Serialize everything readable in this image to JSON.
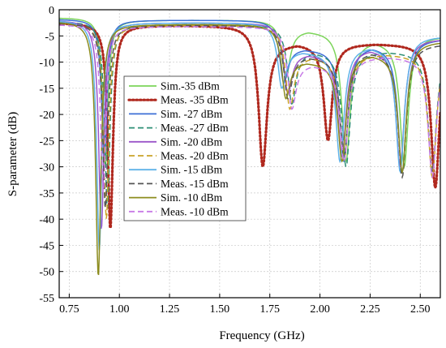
{
  "chart_data": {
    "type": "line",
    "title": "",
    "xlabel": "Frequency (GHz)",
    "ylabel": "S-parameter (dB)",
    "xlim": [
      0.7,
      2.6
    ],
    "ylim": [
      -55,
      0
    ],
    "xticks": [
      "0.75",
      "1.00",
      "1.25",
      "1.50",
      "1.75",
      "2.00",
      "2.25",
      "2.50"
    ],
    "yticks": [
      "0",
      "-5",
      "-10",
      "-15",
      "-20",
      "-25",
      "-30",
      "-35",
      "-40",
      "-45",
      "-50",
      "-55"
    ],
    "legend_position": "center-left",
    "series": [
      {
        "name": "Sim.-35 dBm",
        "color": "#7cd45a",
        "dash": "solid",
        "notches": [
          [
            0.93,
            -30
          ],
          [
            1.83,
            -13
          ],
          [
            2.13,
            -29
          ],
          [
            2.42,
            -30
          ]
        ],
        "peaks": [
          -1.5,
          -2.0,
          -4.0,
          -6.0,
          -5.0
        ]
      },
      {
        "name": "Meas. -35 dBm",
        "color": "#b0281e",
        "dash": "dotted",
        "notches": [
          [
            0.955,
            -42
          ],
          [
            1.715,
            -30
          ],
          [
            2.04,
            -25
          ],
          [
            2.575,
            -34
          ]
        ],
        "peaks": [
          -2.5,
          -3.0,
          -6.5,
          -6.5,
          -5.0
        ]
      },
      {
        "name": "Sim. -27 dBm",
        "color": "#3d6fd6",
        "dash": "solid",
        "notches": [
          [
            0.925,
            -29
          ],
          [
            1.82,
            -14
          ],
          [
            2.12,
            -29
          ],
          [
            2.41,
            -31
          ]
        ],
        "peaks": [
          -1.8,
          -2.0,
          -7.5,
          -7.0,
          -5.5
        ]
      },
      {
        "name": "Meas. -27 dBm",
        "color": "#2e8f76",
        "dash": "dashed",
        "notches": [
          [
            0.94,
            -38
          ],
          [
            1.86,
            -18
          ],
          [
            2.13,
            -30
          ],
          [
            2.56,
            -31
          ]
        ],
        "peaks": [
          -2.2,
          -2.8,
          -8.0,
          -8.0,
          -6.5
        ]
      },
      {
        "name": "Sim. -20 dBm",
        "color": "#9b55c9",
        "dash": "solid",
        "notches": [
          [
            0.91,
            -42
          ],
          [
            1.84,
            -16
          ],
          [
            2.11,
            -28
          ],
          [
            2.4,
            -30
          ]
        ],
        "peaks": [
          -2.0,
          -2.5,
          -8.5,
          -7.5,
          -5.5
        ]
      },
      {
        "name": "Meas. -20 dBm",
        "color": "#c9a227",
        "dash": "dashed",
        "notches": [
          [
            0.935,
            -40
          ],
          [
            1.85,
            -19
          ],
          [
            2.12,
            -29
          ],
          [
            2.56,
            -32
          ]
        ],
        "peaks": [
          -2.5,
          -3.0,
          -9.0,
          -8.5,
          -7.0
        ]
      },
      {
        "name": "Sim. -15 dBm",
        "color": "#5fb2e8",
        "dash": "solid",
        "notches": [
          [
            0.9,
            -46
          ],
          [
            1.81,
            -15
          ],
          [
            2.1,
            -29
          ],
          [
            2.4,
            -31
          ]
        ],
        "peaks": [
          -2.0,
          -2.5,
          -8.0,
          -7.0,
          -5.0
        ]
      },
      {
        "name": "Meas. -15 dBm",
        "color": "#555555",
        "dash": "dashed",
        "notches": [
          [
            0.93,
            -38
          ],
          [
            1.84,
            -17
          ],
          [
            2.12,
            -28
          ],
          [
            2.41,
            -32
          ]
        ],
        "peaks": [
          -2.5,
          -3.0,
          -9.0,
          -8.0,
          -6.5
        ]
      },
      {
        "name": "Sim. -10 dBm",
        "color": "#8c8c1e",
        "dash": "solid",
        "notches": [
          [
            0.895,
            -51
          ],
          [
            1.83,
            -17
          ],
          [
            2.11,
            -29
          ],
          [
            2.41,
            -31
          ]
        ],
        "peaks": [
          -2.2,
          -2.8,
          -10.0,
          -8.5,
          -6.0
        ]
      },
      {
        "name": "Meas. -10 dBm",
        "color": "#c77ae6",
        "dash": "dashed",
        "notches": [
          [
            0.92,
            -35
          ],
          [
            1.86,
            -19
          ],
          [
            2.12,
            -29
          ],
          [
            2.56,
            -32
          ]
        ],
        "peaks": [
          -2.8,
          -3.2,
          -10.5,
          -9.0,
          -7.5
        ]
      }
    ]
  }
}
